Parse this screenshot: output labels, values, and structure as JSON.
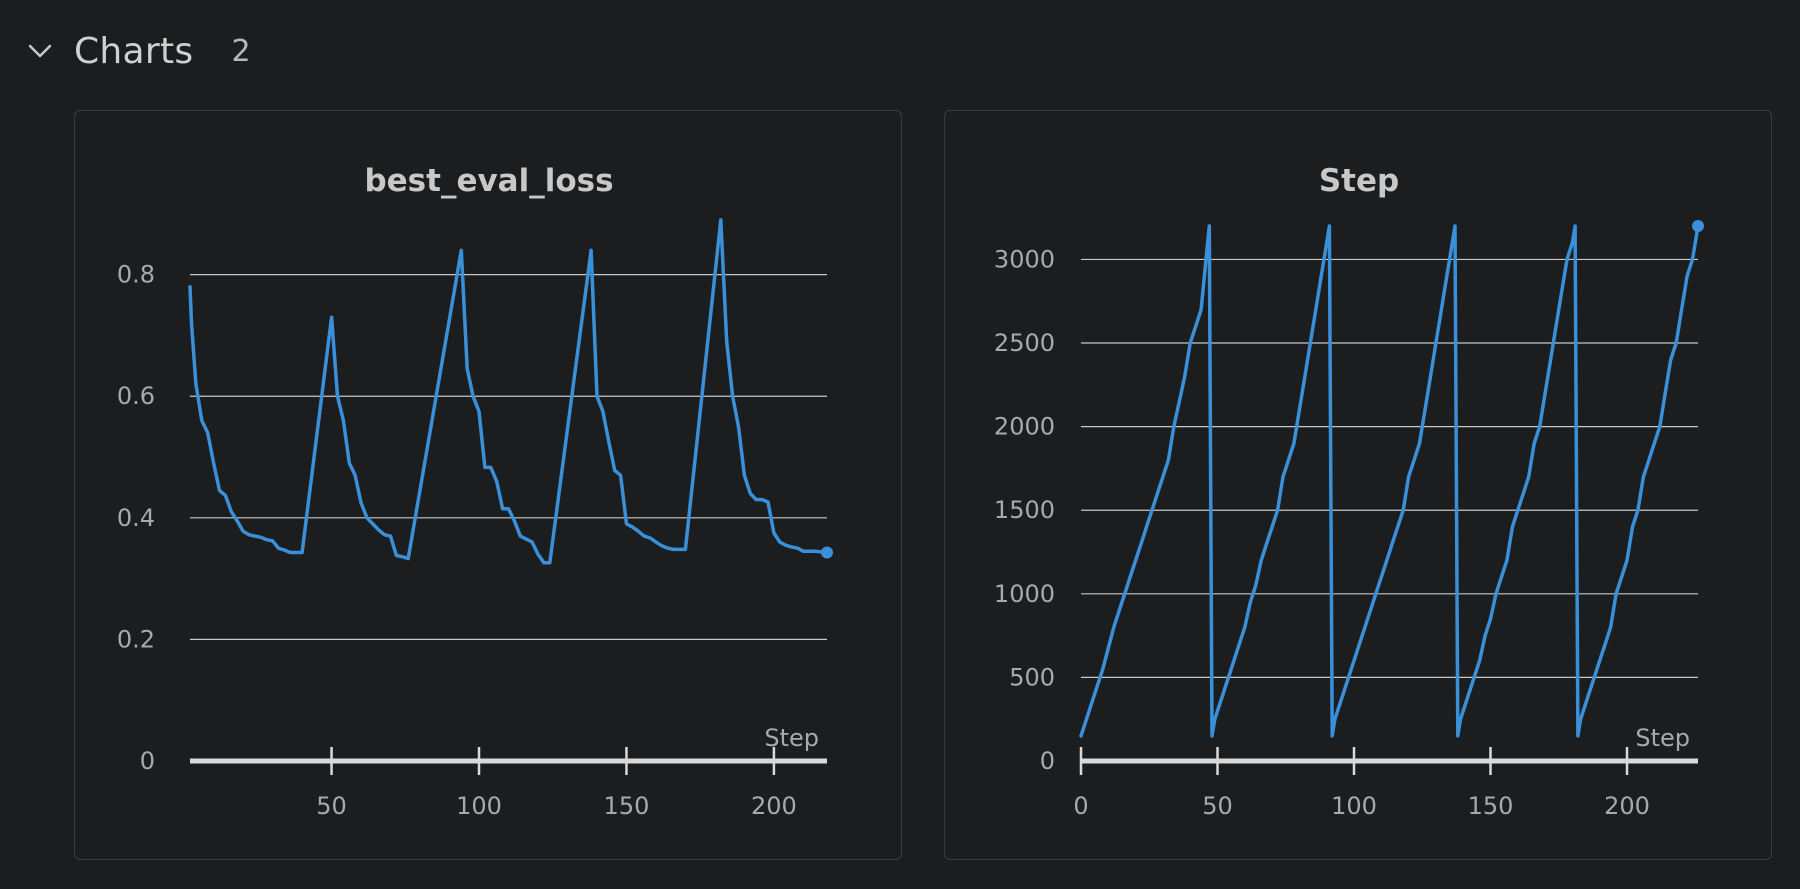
{
  "section": {
    "title": "Charts",
    "count": "2"
  },
  "colors": {
    "line": "#3a8fd9",
    "grid": "#c8c8c8",
    "axis": "#d9d9d9",
    "background": "#1b1d1f"
  },
  "icons": {
    "collapse": "chevron-down-icon"
  },
  "chart_data": [
    {
      "type": "line",
      "title": "best_eval_loss",
      "xlabel": "Step",
      "ylabel": "",
      "xlim": [
        2,
        218
      ],
      "ylim": [
        0,
        0.88
      ],
      "xticks": [
        50,
        100,
        150,
        200
      ],
      "xtick_labels": [
        "50",
        "100",
        "150",
        "200"
      ],
      "yticks": [
        0,
        0.2,
        0.4,
        0.6,
        0.8
      ],
      "ytick_labels": [
        "0",
        "0.2",
        "0.4",
        "0.6",
        "0.8"
      ],
      "grid": true,
      "end_marker": true,
      "series": [
        {
          "x": [
            2,
            2.5,
            4,
            6,
            8,
            10,
            12,
            14,
            16,
            18,
            20,
            22,
            24,
            26,
            28,
            30,
            32,
            34,
            36,
            38,
            40,
            50,
            52,
            54,
            56,
            58,
            60,
            62,
            64,
            66,
            68,
            70,
            72,
            74,
            76,
            94,
            96,
            98,
            100,
            102,
            104,
            106,
            108,
            110,
            112,
            114,
            116,
            118,
            120,
            122,
            124,
            138,
            140,
            142,
            144,
            146,
            148,
            150,
            152,
            154,
            156,
            158,
            160,
            162,
            164,
            166,
            168,
            170,
            182,
            184,
            186,
            188,
            190,
            192,
            194,
            196,
            198,
            200,
            202,
            204,
            206,
            208,
            210,
            212,
            214,
            216,
            218
          ],
          "y": [
            0.78,
            0.72,
            0.62,
            0.56,
            0.54,
            0.49,
            0.445,
            0.437,
            0.41,
            0.395,
            0.378,
            0.372,
            0.37,
            0.368,
            0.364,
            0.362,
            0.35,
            0.347,
            0.343,
            0.343,
            0.343,
            0.73,
            0.6,
            0.56,
            0.49,
            0.47,
            0.425,
            0.4,
            0.39,
            0.38,
            0.372,
            0.37,
            0.338,
            0.336,
            0.333,
            0.84,
            0.645,
            0.6,
            0.575,
            0.483,
            0.483,
            0.46,
            0.415,
            0.415,
            0.395,
            0.37,
            0.365,
            0.36,
            0.34,
            0.326,
            0.326,
            0.84,
            0.6,
            0.575,
            0.525,
            0.478,
            0.47,
            0.39,
            0.385,
            0.378,
            0.37,
            0.367,
            0.36,
            0.354,
            0.35,
            0.348,
            0.348,
            0.348,
            0.89,
            0.69,
            0.6,
            0.55,
            0.47,
            0.44,
            0.43,
            0.43,
            0.426,
            0.375,
            0.36,
            0.355,
            0.352,
            0.35,
            0.345,
            0.345,
            0.345,
            0.344,
            0.343
          ]
        }
      ]
    },
    {
      "type": "line",
      "title": "Step",
      "xlabel": "Step",
      "ylabel": "",
      "xlim": [
        0,
        226
      ],
      "ylim": [
        0,
        3200
      ],
      "xticks": [
        0,
        50,
        100,
        150,
        200
      ],
      "xtick_labels": [
        "0",
        "50",
        "100",
        "150",
        "200"
      ],
      "yticks": [
        0,
        500,
        1000,
        1500,
        2000,
        2500,
        3000
      ],
      "ytick_labels": [
        "0",
        "500",
        "1000",
        "1500",
        "2000",
        "2500",
        "3000"
      ],
      "grid": true,
      "end_marker": true,
      "series": [
        {
          "x": [
            0,
            8,
            12,
            14,
            16,
            18,
            20,
            22,
            24,
            26,
            28,
            30,
            32,
            34,
            36,
            38,
            40,
            42,
            44,
            47,
            48,
            49,
            52,
            56,
            58,
            60,
            62,
            64,
            66,
            68,
            70,
            72,
            74,
            76,
            78,
            80,
            82,
            84,
            86,
            88,
            90,
            91,
            92,
            93,
            96,
            100,
            104,
            106,
            108,
            110,
            112,
            114,
            116,
            118,
            120,
            122,
            124,
            126,
            128,
            130,
            132,
            134,
            136,
            137,
            138,
            139,
            142,
            146,
            148,
            150,
            152,
            154,
            156,
            158,
            160,
            162,
            164,
            166,
            168,
            170,
            172,
            174,
            176,
            178,
            180,
            181,
            182,
            183,
            186,
            190,
            192,
            194,
            196,
            198,
            200,
            202,
            204,
            206,
            208,
            210,
            212,
            214,
            216,
            218,
            220,
            222,
            224,
            226
          ],
          "y": [
            150,
            550,
            800,
            900,
            1000,
            1100,
            1200,
            1300,
            1400,
            1500,
            1600,
            1700,
            1800,
            2000,
            2150,
            2300,
            2500,
            2600,
            2700,
            3200,
            150,
            250,
            400,
            600,
            700,
            800,
            950,
            1050,
            1200,
            1300,
            1400,
            1500,
            1700,
            1800,
            1900,
            2100,
            2300,
            2500,
            2700,
            2900,
            3100,
            3200,
            150,
            250,
            400,
            600,
            800,
            900,
            1000,
            1100,
            1200,
            1300,
            1400,
            1500,
            1700,
            1800,
            1900,
            2100,
            2300,
            2500,
            2700,
            2900,
            3100,
            3200,
            150,
            250,
            400,
            600,
            750,
            850,
            1000,
            1100,
            1200,
            1400,
            1500,
            1600,
            1700,
            1900,
            2000,
            2200,
            2400,
            2600,
            2800,
            3000,
            3100,
            3200,
            150,
            250,
            400,
            600,
            700,
            800,
            1000,
            1100,
            1200,
            1400,
            1500,
            1700,
            1800,
            1900,
            2000,
            2200,
            2400,
            2500,
            2700,
            2900,
            3000,
            3200
          ]
        }
      ]
    }
  ]
}
